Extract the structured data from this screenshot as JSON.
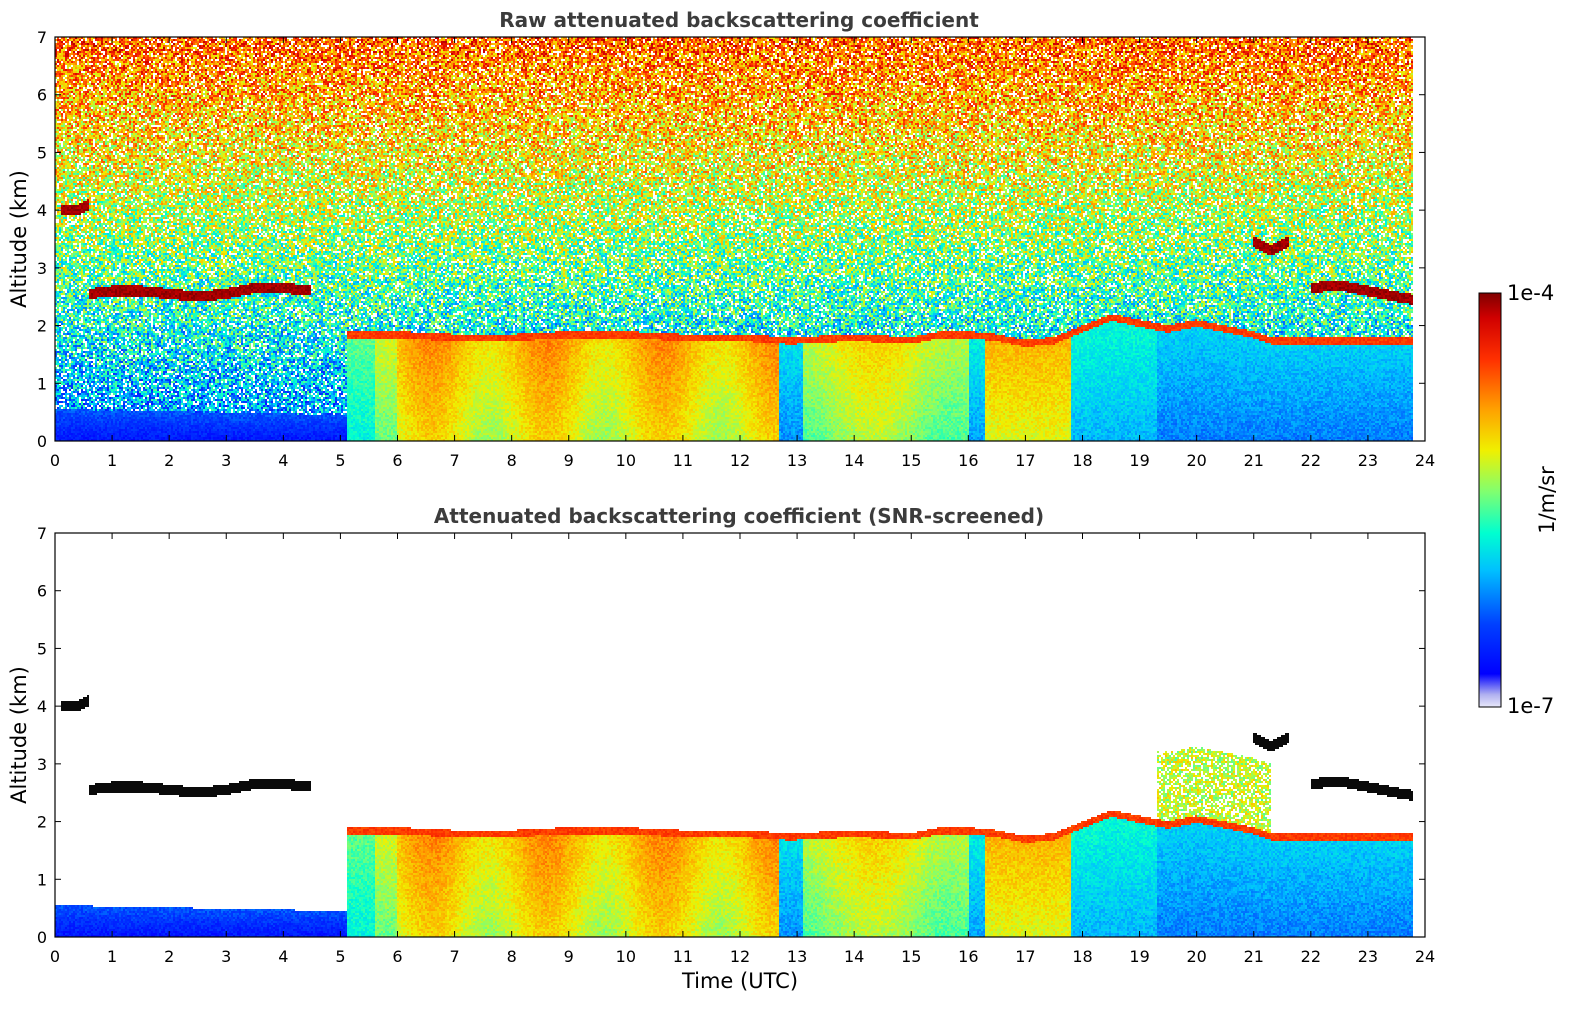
{
  "chart_data": [
    {
      "type": "heatmap",
      "title": "Raw attenuated backscattering coefficient",
      "xlabel": "",
      "ylabel": "Altitude (km)",
      "xlim": [
        0,
        24
      ],
      "ylim": [
        0,
        7
      ],
      "xticks": [
        0,
        1,
        2,
        3,
        4,
        5,
        6,
        7,
        8,
        9,
        10,
        11,
        12,
        13,
        14,
        15,
        16,
        17,
        18,
        19,
        20,
        21,
        22,
        23,
        24
      ],
      "yticks": [
        0,
        1,
        2,
        3,
        4,
        5,
        6,
        7
      ],
      "data_end_time": 23.8,
      "screened": false,
      "features": [
        {
          "kind": "boundary_layer_top",
          "x": [
            5.1,
            6,
            7,
            8,
            9,
            10,
            11,
            12,
            12.8,
            13,
            14,
            15,
            15.5,
            16,
            16.5,
            17,
            17.5,
            18,
            18.5,
            19,
            19.5,
            20,
            20.5,
            21,
            21.3
          ],
          "y": [
            1.9,
            1.9,
            1.85,
            1.85,
            1.9,
            1.9,
            1.85,
            1.85,
            1.8,
            1.8,
            1.85,
            1.8,
            1.9,
            1.9,
            1.85,
            1.75,
            1.8,
            2.0,
            2.2,
            2.1,
            2.0,
            2.1,
            2.0,
            1.9,
            1.8
          ]
        },
        {
          "kind": "cloud_layer",
          "x": [
            0.6,
            1,
            1.5,
            2,
            2.5,
            3,
            3.5,
            4,
            4.5
          ],
          "y": [
            2.55,
            2.6,
            2.6,
            2.55,
            2.5,
            2.55,
            2.65,
            2.65,
            2.6
          ]
        },
        {
          "kind": "cloud_layer",
          "x": [
            22,
            22.5,
            23,
            23.5,
            23.8
          ],
          "y": [
            2.65,
            2.7,
            2.6,
            2.5,
            2.45
          ]
        },
        {
          "kind": "cloud_layer",
          "x": [
            21.0,
            21.3,
            21.6
          ],
          "y": [
            3.45,
            3.3,
            3.45
          ]
        },
        {
          "kind": "cloud_layer",
          "x": [
            0.1,
            0.4,
            0.6
          ],
          "y": [
            4.0,
            4.0,
            4.1
          ]
        }
      ]
    },
    {
      "type": "heatmap",
      "title": "Attenuated backscattering coefficient (SNR-screened)",
      "xlabel": "Time (UTC)",
      "ylabel": "Altitude (km)",
      "xlim": [
        0,
        24
      ],
      "ylim": [
        0,
        7
      ],
      "xticks": [
        0,
        1,
        2,
        3,
        4,
        5,
        6,
        7,
        8,
        9,
        10,
        11,
        12,
        13,
        14,
        15,
        16,
        17,
        18,
        19,
        20,
        21,
        22,
        23,
        24
      ],
      "yticks": [
        0,
        1,
        2,
        3,
        4,
        5,
        6,
        7
      ],
      "data_end_time": 23.8,
      "screened": true
    }
  ],
  "colorbar": {
    "label": "1/m/sr",
    "min_label": "1e-7",
    "max_label": "1e-4",
    "colormap": "jet",
    "low_color": "#e8e8fa",
    "high_color": "#800000"
  }
}
